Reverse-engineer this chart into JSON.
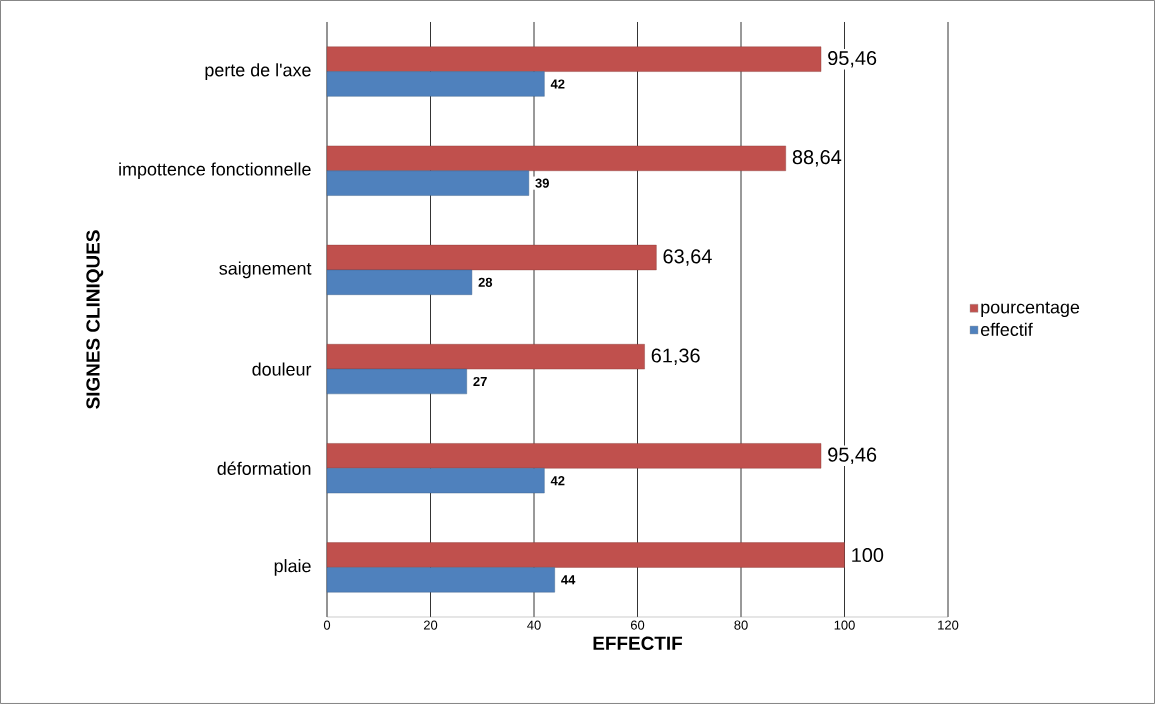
{
  "chart_data": {
    "type": "bar",
    "orientation": "horizontal",
    "xlabel": "EFFECTIF",
    "ylabel": "SIGNES CLINIQUES",
    "categories": [
      "perte de l'axe",
      "impottence fonctionnelle",
      "saignement",
      "douleur",
      "déformation",
      "plaie"
    ],
    "series": [
      {
        "name": "pourcentage",
        "color": "#c0504d",
        "values": [
          95.46,
          88.64,
          63.64,
          61.36,
          95.46,
          100
        ],
        "value_labels": [
          "95,46",
          "88,64",
          "63,64",
          "61,36",
          "95,46",
          "100"
        ]
      },
      {
        "name": "effectif",
        "color": "#4f81bd",
        "values": [
          42,
          39,
          28,
          27,
          42,
          44
        ],
        "value_labels": [
          "42",
          "39",
          "28",
          "27",
          "42",
          "44"
        ]
      }
    ],
    "xlim": [
      0,
      120
    ],
    "xticks": [
      0,
      20,
      40,
      60,
      80,
      100,
      120
    ],
    "grid": "x",
    "legend": "right"
  }
}
